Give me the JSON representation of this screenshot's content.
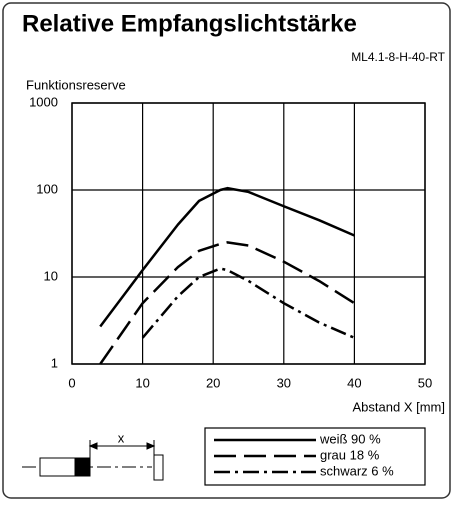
{
  "chart_data": {
    "type": "line",
    "title": "Relative Empfangslichtstärke",
    "subtitle": "ML4.1-8-H-40-RT",
    "y_label": "Funktionsreserve",
    "x_label": "Abstand X [mm]",
    "diagram_label": "x",
    "log_y": true,
    "grid": true,
    "x": [
      4,
      10,
      15,
      18,
      21,
      22,
      25,
      30,
      35,
      40
    ],
    "series": [
      {
        "name": "weiß 90 %",
        "color": "#000000",
        "dash": "solid",
        "values": [
          2.7,
          12,
          40,
          75,
          100,
          105,
          95,
          65,
          45,
          30
        ]
      },
      {
        "name": "grau 18 %",
        "color": "#000000",
        "dash": "dash",
        "values": [
          1,
          5,
          13,
          20,
          24,
          25,
          23,
          15,
          9,
          5
        ]
      },
      {
        "name": "schwarz 6 %",
        "color": "#000000",
        "dash": "dashdot",
        "values": [
          null,
          2,
          6,
          10,
          12.5,
          12,
          9,
          5,
          3,
          2
        ]
      }
    ],
    "xlim": [
      0,
      50
    ],
    "xticks": [
      0,
      10,
      20,
      30,
      40,
      50
    ],
    "ylim": [
      1,
      1000
    ],
    "yticks": [
      1,
      10,
      100,
      1000
    ]
  }
}
